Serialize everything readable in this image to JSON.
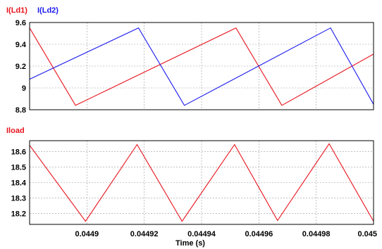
{
  "chart_data": [
    {
      "type": "line",
      "title": "",
      "xlabel": "",
      "ylabel": "",
      "xlim": [
        0.04488,
        0.045
      ],
      "ylim": [
        8.8,
        9.6
      ],
      "yticks": [
        "9.6",
        "9.4",
        "9.2",
        "9",
        "8.8"
      ],
      "yticks_values": [
        9.6,
        9.4,
        9.2,
        9.0,
        8.8
      ],
      "xticks_values": [
        0.0449,
        0.04492,
        0.04494,
        0.04496,
        0.04498,
        0.045
      ],
      "grid": true,
      "legend_position": "top-left, above plot",
      "series": [
        {
          "name": "I(Ld1)",
          "color": "#e8121c",
          "x": [
            0.04488,
            0.044896,
            0.044952,
            0.044968,
            0.045
          ],
          "y": [
            9.55,
            8.84,
            9.55,
            8.84,
            9.31
          ]
        },
        {
          "name": "I(Ld2)",
          "color": "#1a1aee",
          "x": [
            0.04488,
            0.044918,
            0.044934,
            0.044985,
            0.045
          ],
          "y": [
            9.08,
            9.55,
            8.84,
            9.55,
            8.85
          ]
        }
      ]
    },
    {
      "type": "line",
      "title": "",
      "xlabel": "Time (s)",
      "ylabel": "",
      "xlim": [
        0.04488,
        0.045
      ],
      "ylim": [
        18.13,
        18.67
      ],
      "yticks": [
        "18.6",
        "18.5",
        "18.4",
        "18.3",
        "18.2"
      ],
      "yticks_values": [
        18.6,
        18.5,
        18.4,
        18.3,
        18.2
      ],
      "xticks": [
        "0.0449",
        "0.04492",
        "0.04494",
        "0.04496",
        "0.04498",
        "0.045"
      ],
      "xticks_values": [
        0.0449,
        0.04492,
        0.04494,
        0.04496,
        0.04498,
        0.045
      ],
      "grid": true,
      "legend_position": "top-left, above plot",
      "series": [
        {
          "name": "Iload",
          "color": "#e8121c",
          "x": [
            0.04488,
            0.0448995,
            0.0449175,
            0.0449332,
            0.0449515,
            0.0449665,
            0.0449845,
            0.045
          ],
          "y": [
            18.64,
            18.15,
            18.645,
            18.15,
            18.645,
            18.155,
            18.65,
            18.15
          ]
        }
      ]
    }
  ]
}
